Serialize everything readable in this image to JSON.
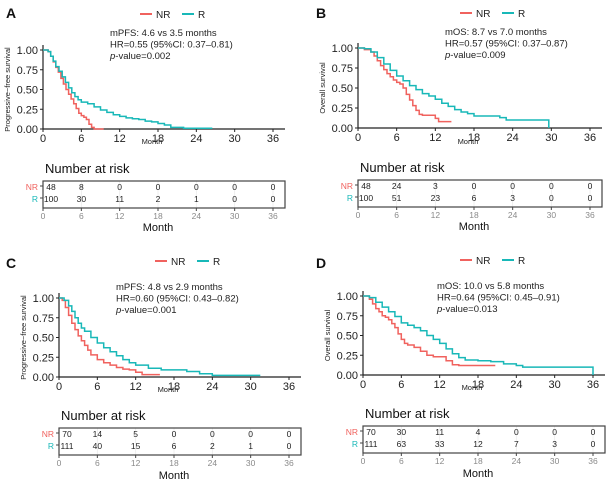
{
  "figure": {
    "colors": {
      "NR": "#f0625e",
      "R": "#18b8b8",
      "axis": "#222222",
      "tick_gray": "#8a8a8a",
      "risk_grid": "#ebebeb"
    },
    "legend_labels": [
      "NR",
      "R"
    ],
    "risk_table_title": "Number at risk",
    "risk_xlabel": "Month"
  },
  "chart_data": [
    {
      "panel": "A",
      "type": "line",
      "title": "A",
      "xlabel": "Month",
      "ylabel": "Progressive−free survival",
      "xlim": [
        0,
        36
      ],
      "ylim": [
        0,
        1
      ],
      "xticks": [
        0,
        6,
        12,
        18,
        24,
        30,
        36
      ],
      "yticks": [
        "0.00",
        "0.25",
        "0.50",
        "0.75",
        "1.00"
      ],
      "legend": "top-center",
      "annotation": {
        "median_label": "mPFS:",
        "median_text": "4.6 vs 3.5 months",
        "hr_text": "HR=0.55 (95%CI: 0.37–0.81)",
        "p_text": "-value=0.002"
      },
      "series": [
        {
          "name": "NR",
          "x": [
            0,
            0.8,
            1.2,
            1.6,
            2.0,
            2.4,
            2.8,
            3.2,
            3.6,
            4.0,
            4.4,
            4.8,
            5.2,
            5.6,
            6.0,
            6.4,
            6.8,
            7.2,
            7.6,
            8.0,
            9.5
          ],
          "y": [
            1.0,
            0.98,
            0.92,
            0.85,
            0.78,
            0.72,
            0.64,
            0.57,
            0.5,
            0.44,
            0.38,
            0.32,
            0.26,
            0.2,
            0.17,
            0.15,
            0.12,
            0.06,
            0.02,
            0.0,
            0.0
          ]
        },
        {
          "name": "R",
          "x": [
            0,
            0.8,
            1.2,
            1.6,
            2.0,
            2.5,
            3.0,
            3.5,
            4.0,
            4.5,
            5.0,
            5.5,
            6.0,
            7.0,
            8.0,
            9.0,
            10.0,
            11.0,
            12.0,
            13.0,
            14.0,
            15.0,
            16.0,
            17.0,
            18.0,
            19.0,
            20.0,
            22.0,
            24.0,
            26.5
          ],
          "y": [
            1.0,
            0.98,
            0.92,
            0.86,
            0.79,
            0.73,
            0.66,
            0.59,
            0.52,
            0.46,
            0.41,
            0.37,
            0.34,
            0.32,
            0.28,
            0.24,
            0.21,
            0.18,
            0.16,
            0.14,
            0.13,
            0.12,
            0.1,
            0.09,
            0.07,
            0.05,
            0.02,
            0.01,
            0.01,
            0.01
          ]
        }
      ],
      "risk_table": {
        "times": [
          0,
          6,
          12,
          18,
          24,
          30,
          36
        ],
        "NR": [
          48,
          8,
          0,
          0,
          0,
          0,
          0
        ],
        "R": [
          100,
          30,
          11,
          2,
          1,
          0,
          0
        ]
      }
    },
    {
      "panel": "B",
      "type": "line",
      "title": "B",
      "xlabel": "Month",
      "ylabel": "Overall survival",
      "xlim": [
        0,
        36
      ],
      "ylim": [
        0,
        1
      ],
      "xticks": [
        0,
        6,
        12,
        18,
        24,
        30,
        36
      ],
      "yticks": [
        "0.00",
        "0.25",
        "0.50",
        "0.75",
        "1.00"
      ],
      "legend": "top-center",
      "annotation": {
        "median_label": "mOS:",
        "median_text": "8.7 vs 7.0 months",
        "hr_text": "HR=0.57 (95%CI: 0.37–0.87)",
        "p_text": "-value=0.009"
      },
      "series": [
        {
          "name": "NR",
          "x": [
            0,
            1.0,
            2.0,
            2.5,
            3.0,
            3.5,
            4.0,
            4.5,
            5.0,
            5.5,
            6.0,
            6.5,
            7.0,
            7.5,
            8.0,
            8.5,
            9.0,
            9.5,
            10.0,
            11.0,
            12.0,
            12.5,
            14.5
          ],
          "y": [
            1.0,
            0.98,
            0.95,
            0.9,
            0.84,
            0.78,
            0.73,
            0.68,
            0.64,
            0.6,
            0.57,
            0.55,
            0.5,
            0.42,
            0.35,
            0.28,
            0.22,
            0.17,
            0.16,
            0.16,
            0.12,
            0.08,
            0.08
          ]
        },
        {
          "name": "R",
          "x": [
            0,
            1.0,
            2.0,
            3.0,
            4.0,
            5.0,
            6.0,
            7.0,
            8.0,
            9.0,
            10.0,
            11.0,
            12.0,
            13.0,
            14.0,
            15.0,
            16.0,
            17.0,
            18.0,
            20.0,
            22.0,
            23.0,
            26.0,
            29.5,
            29.6
          ],
          "y": [
            1.0,
            0.99,
            0.95,
            0.88,
            0.8,
            0.72,
            0.65,
            0.59,
            0.53,
            0.48,
            0.43,
            0.4,
            0.36,
            0.31,
            0.27,
            0.23,
            0.2,
            0.18,
            0.15,
            0.15,
            0.13,
            0.1,
            0.1,
            0.1,
            0.0
          ]
        }
      ],
      "risk_table": {
        "times": [
          0,
          6,
          12,
          18,
          24,
          30,
          36
        ],
        "NR": [
          48,
          24,
          3,
          0,
          0,
          0,
          0
        ],
        "R": [
          100,
          51,
          23,
          6,
          3,
          0,
          0
        ]
      }
    },
    {
      "panel": "C",
      "type": "line",
      "title": "C",
      "xlabel": "Month",
      "ylabel": "Progressive−free survival",
      "xlim": [
        0,
        36
      ],
      "ylim": [
        0,
        1
      ],
      "xticks": [
        0,
        6,
        12,
        18,
        24,
        30,
        36
      ],
      "yticks": [
        "0.00",
        "0.25",
        "0.50",
        "0.75",
        "1.00"
      ],
      "legend": "top-center",
      "annotation": {
        "median_label": "mPFS:",
        "median_text": "4.8 vs 2.9 months",
        "hr_text": "HR=0.60 (95%CI: 0.43–0.82)",
        "p_text": "-value=0.001"
      },
      "series": [
        {
          "name": "NR",
          "x": [
            0,
            0.5,
            1.0,
            1.5,
            2.0,
            2.5,
            3.0,
            3.5,
            4.0,
            4.5,
            5.0,
            6.0,
            7.0,
            8.0,
            9.0,
            10.0,
            11.0,
            12.0,
            13.0,
            14.0,
            15.8
          ],
          "y": [
            1.0,
            0.97,
            0.88,
            0.78,
            0.68,
            0.6,
            0.52,
            0.46,
            0.4,
            0.34,
            0.28,
            0.22,
            0.18,
            0.15,
            0.12,
            0.1,
            0.09,
            0.06,
            0.03,
            0.03,
            0.03
          ]
        },
        {
          "name": "R",
          "x": [
            0,
            0.8,
            1.5,
            2.0,
            2.5,
            3.0,
            3.5,
            4.0,
            5.0,
            6.0,
            7.0,
            8.0,
            9.0,
            10.0,
            11.0,
            12.0,
            14.0,
            16.0,
            18.0,
            20.0,
            22.0,
            24.0,
            28.0,
            31.5
          ],
          "y": [
            1.0,
            0.97,
            0.9,
            0.83,
            0.75,
            0.68,
            0.62,
            0.58,
            0.5,
            0.43,
            0.37,
            0.32,
            0.27,
            0.22,
            0.18,
            0.15,
            0.11,
            0.09,
            0.09,
            0.07,
            0.04,
            0.02,
            0.02,
            0.02
          ]
        }
      ],
      "risk_table": {
        "times": [
          0,
          6,
          12,
          18,
          24,
          30,
          36
        ],
        "NR": [
          70,
          14,
          5,
          0,
          0,
          0,
          0
        ],
        "R": [
          111,
          40,
          15,
          6,
          2,
          1,
          0
        ]
      }
    },
    {
      "panel": "D",
      "type": "line",
      "title": "D",
      "xlabel": "Month",
      "ylabel": "Overall survival",
      "xlim": [
        0,
        36
      ],
      "ylim": [
        0,
        1
      ],
      "xticks": [
        0,
        6,
        12,
        18,
        24,
        30,
        36
      ],
      "yticks": [
        "0.00",
        "0.25",
        "0.50",
        "0.75",
        "1.00"
      ],
      "legend": "top-center",
      "annotation": {
        "median_label": "mOS:",
        "median_text": "10.0 vs 5.8 months",
        "hr_text": "HR=0.64 (95%CI: 0.45–0.91)",
        "p_text": "-value=0.013"
      },
      "series": [
        {
          "name": "NR",
          "x": [
            0,
            1.0,
            1.5,
            2.0,
            2.5,
            3.0,
            3.5,
            4.0,
            4.5,
            5.0,
            5.5,
            6.0,
            6.5,
            7.0,
            8.0,
            9.0,
            10.0,
            11.0,
            12.0,
            13.0,
            14.0,
            15.0,
            18.0,
            20.7
          ],
          "y": [
            1.0,
            0.96,
            0.9,
            0.84,
            0.8,
            0.75,
            0.73,
            0.7,
            0.65,
            0.6,
            0.52,
            0.45,
            0.4,
            0.38,
            0.35,
            0.3,
            0.25,
            0.23,
            0.23,
            0.18,
            0.13,
            0.12,
            0.12,
            0.12
          ]
        },
        {
          "name": "R",
          "x": [
            0,
            1.0,
            2.0,
            3.0,
            4.0,
            5.0,
            6.0,
            7.0,
            8.0,
            9.0,
            10.0,
            11.0,
            12.0,
            13.0,
            14.0,
            15.0,
            16.0,
            18.0,
            20.0,
            22.0,
            24.0,
            25.0,
            30.0,
            35.9,
            36.0
          ],
          "y": [
            1.0,
            0.98,
            0.92,
            0.86,
            0.8,
            0.74,
            0.66,
            0.63,
            0.6,
            0.56,
            0.5,
            0.45,
            0.4,
            0.33,
            0.27,
            0.22,
            0.19,
            0.18,
            0.17,
            0.14,
            0.12,
            0.1,
            0.1,
            0.1,
            0.0
          ]
        }
      ],
      "risk_table": {
        "times": [
          0,
          6,
          12,
          18,
          24,
          30,
          36
        ],
        "NR": [
          70,
          30,
          11,
          4,
          0,
          0,
          0
        ],
        "R": [
          111,
          63,
          33,
          12,
          7,
          3,
          0
        ]
      }
    }
  ]
}
